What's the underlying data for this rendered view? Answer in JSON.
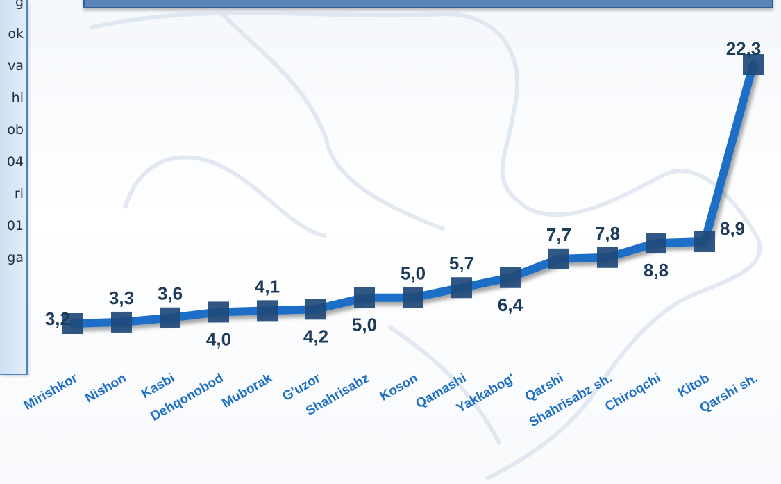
{
  "side_text": [
    "g",
    "ok",
    "va",
    "hi",
    "ob",
    "04",
    "ri",
    "01",
    "ga"
  ],
  "colors": {
    "line": "#1a6ec6",
    "marker": "#1f4a7a",
    "label": "#1f3b5a",
    "tick": "#1f6fc4",
    "panel_border": "#4a83c6",
    "banner": "#5b84b8"
  },
  "chart_data": {
    "type": "line",
    "categories": [
      "Mirishkor",
      "Nishon",
      "Kasbi",
      "Dehqonobod",
      "Muborak",
      "G'uzor",
      "Shahrisabz",
      "Koson",
      "Qamashi",
      "Yakkabog'",
      "Qarshi",
      "Shahrisabz sh.",
      "Chiroqchi",
      "Kitob",
      "Qarshi sh."
    ],
    "series": [
      {
        "values": [
          3.2,
          3.3,
          3.6,
          4.0,
          4.1,
          4.2,
          5.0,
          5.0,
          5.7,
          6.4,
          7.7,
          7.8,
          8.8,
          8.9,
          22.3
        ]
      }
    ],
    "data_labels": [
      "3,2",
      "3,3",
      "3,6",
      "4,0",
      "4,1",
      "4,2",
      "5,0",
      "5,0",
      "5,7",
      "6,4",
      "7,7",
      "7,8",
      "8,8",
      "8,9",
      "22,3"
    ],
    "label_positions": [
      "left",
      "above",
      "above",
      "below",
      "above",
      "below",
      "below",
      "above",
      "above",
      "below",
      "above",
      "above",
      "below",
      "right",
      "above"
    ],
    "grid": false,
    "legend": "none"
  }
}
